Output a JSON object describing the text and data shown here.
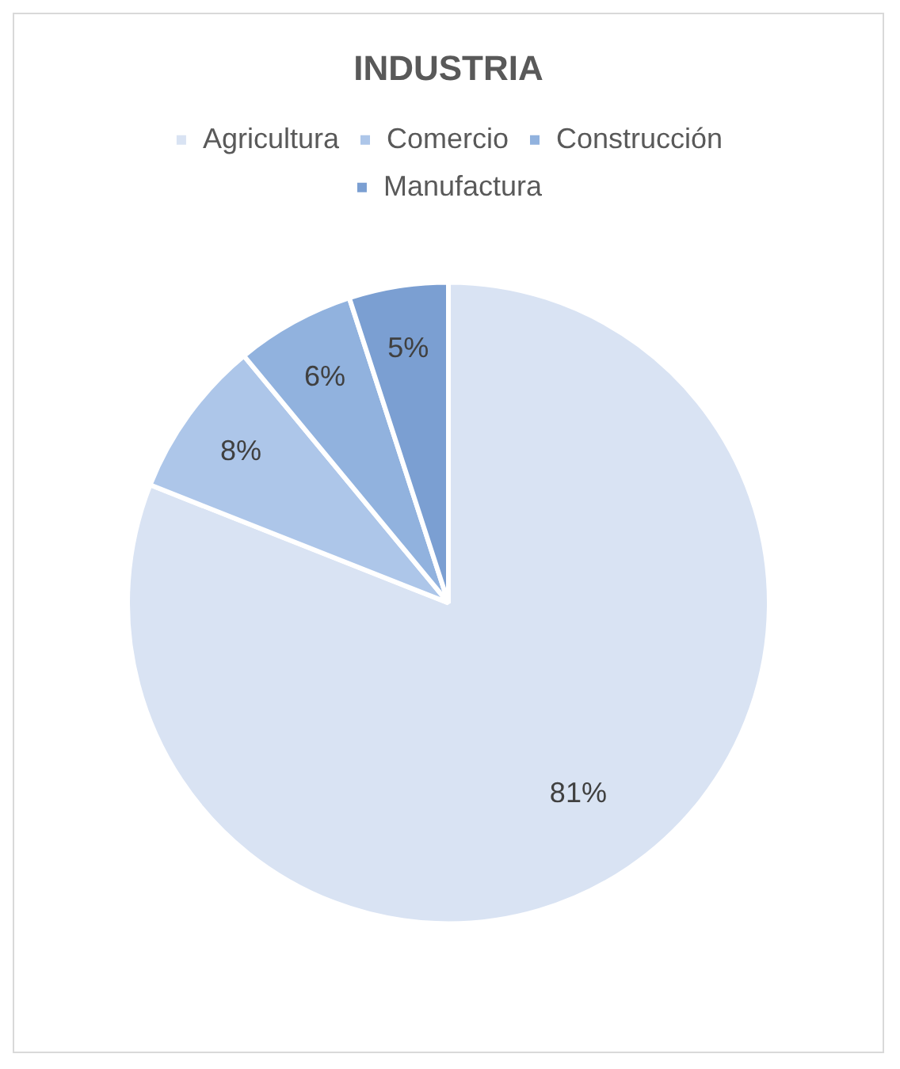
{
  "chart_data": {
    "type": "pie",
    "title": "INDUSTRIA",
    "categories": [
      "Agricultura",
      "Comercio",
      "Construcción",
      "Manufactura"
    ],
    "values": [
      81,
      8,
      6,
      5
    ],
    "value_labels": [
      "81%",
      "8%",
      "6%",
      "5%"
    ],
    "colors": [
      "#d9e3f3",
      "#adc6e9",
      "#91b2de",
      "#7b9fd2"
    ],
    "legend": "top"
  }
}
